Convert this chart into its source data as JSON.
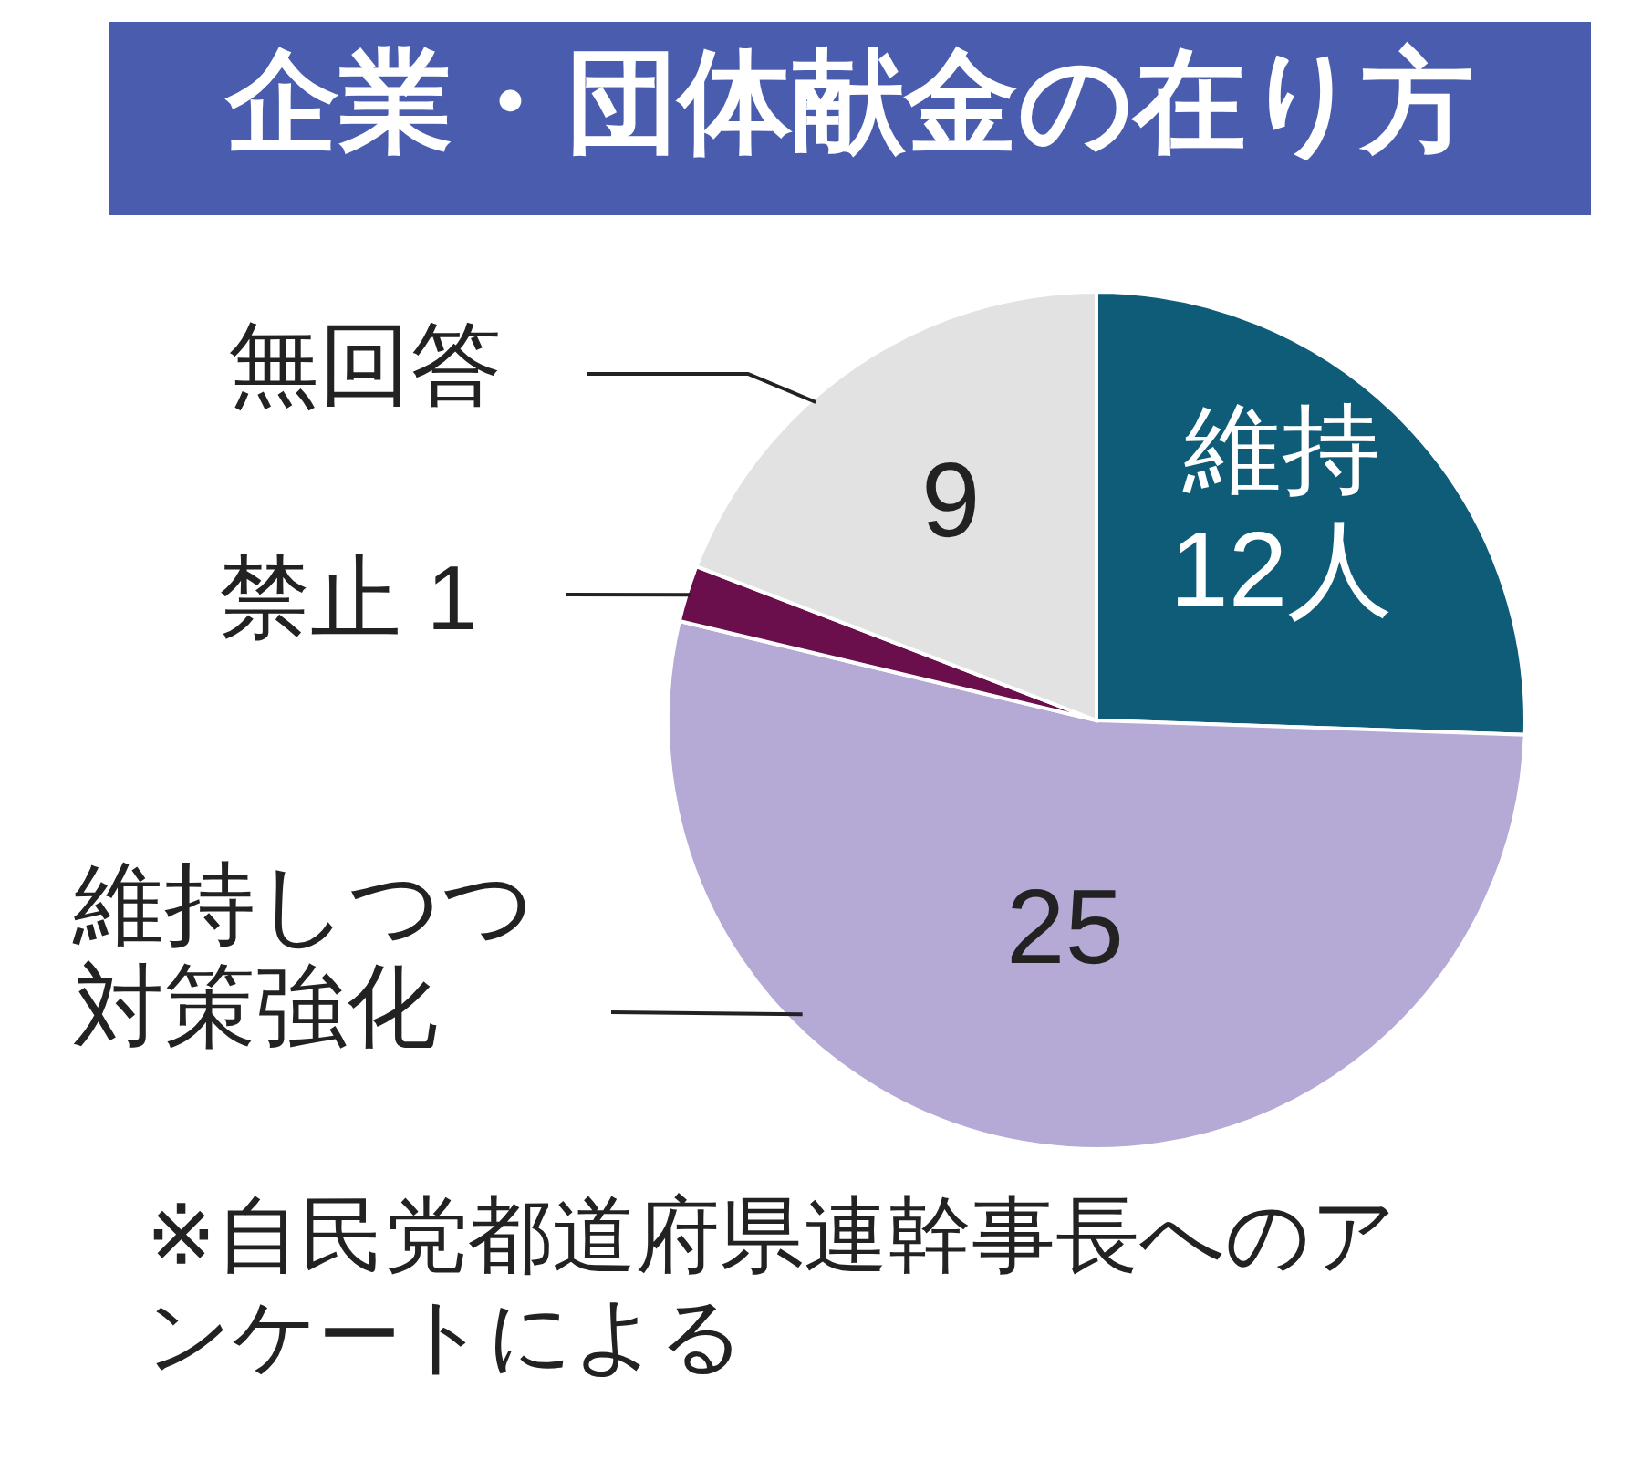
{
  "chart_data": {
    "type": "pie",
    "title": "企業・団体献金の在り方",
    "categories": [
      "維持",
      "維持しつつ対策強化",
      "禁止",
      "無回答"
    ],
    "values": [
      12,
      25,
      1,
      9
    ],
    "value_labels": [
      "12人",
      "25",
      "1",
      "9"
    ],
    "colors": [
      "#0f5c78",
      "#b5aad6",
      "#6a0f4c",
      "#e2e2e2"
    ],
    "legend": false,
    "annotations": [
      "※自民党都道府県連幹事長へのアンケートによる"
    ]
  }
}
